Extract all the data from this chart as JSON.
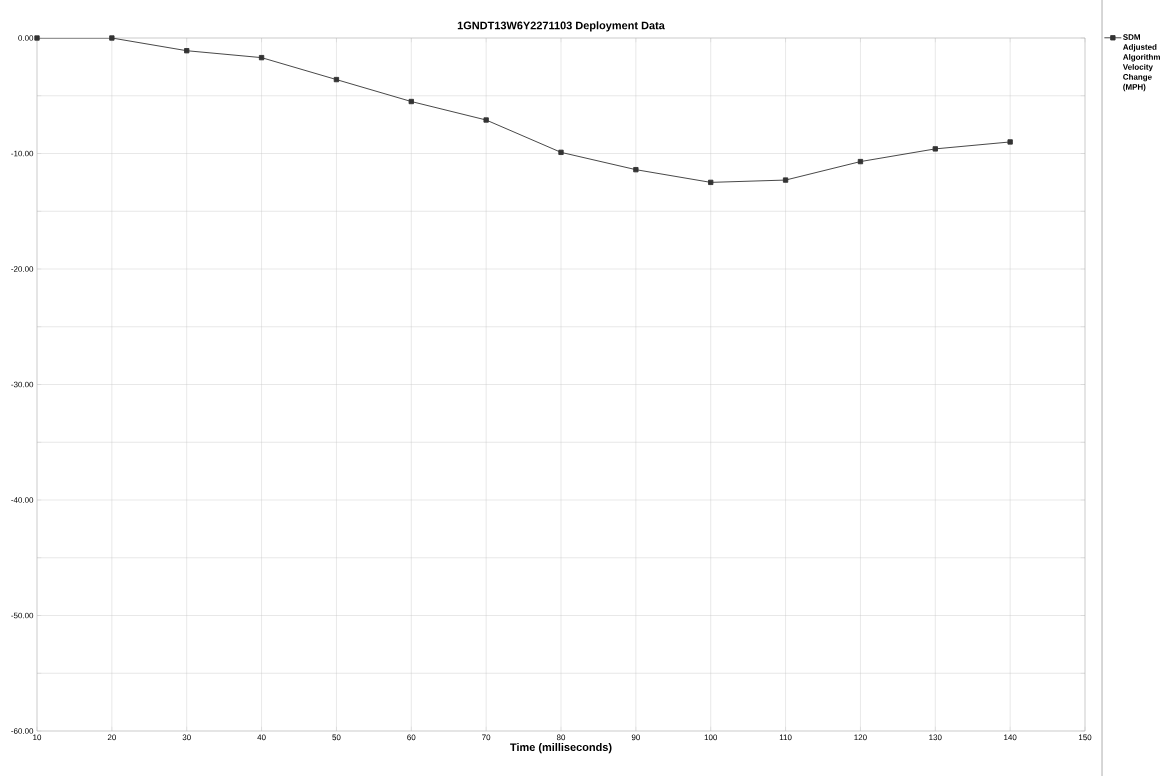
{
  "chart_data": {
    "type": "line",
    "title": "1GNDT13W6Y2271103  Deployment Data",
    "xlabel": "Time (milliseconds)",
    "x": [
      10,
      20,
      30,
      40,
      50,
      60,
      70,
      80,
      90,
      100,
      110,
      120,
      130,
      140
    ],
    "series": [
      {
        "name": "SDM Adjusted Algorithm Velocity Change (MPH)",
        "color": "#333333",
        "values": [
          0,
          0,
          -1.1,
          -1.7,
          -3.6,
          -5.5,
          -7.1,
          -9.9,
          -11.4,
          -12.5,
          -12.3,
          -10.7,
          -9.6,
          -9.0
        ]
      }
    ],
    "xlim": [
      10,
      150
    ],
    "xticks": [
      10,
      20,
      30,
      40,
      50,
      60,
      70,
      80,
      90,
      100,
      110,
      120,
      130,
      140,
      150
    ],
    "ylim": [
      -60,
      0
    ],
    "yticks": [
      {
        "value": 0,
        "label": "0.00"
      },
      {
        "value": -5,
        "label": null
      },
      {
        "value": -10,
        "label": "-10.00"
      },
      {
        "value": -15,
        "label": null
      },
      {
        "value": -20,
        "label": "-20.00"
      },
      {
        "value": -25,
        "label": null
      },
      {
        "value": -30,
        "label": "-30.00"
      },
      {
        "value": -35,
        "label": null
      },
      {
        "value": -40,
        "label": "-40.00"
      },
      {
        "value": -45,
        "label": null
      },
      {
        "value": -50,
        "label": "-50.00"
      },
      {
        "value": -55,
        "label": null
      },
      {
        "value": -60,
        "label": "-60.00"
      }
    ],
    "grid": true,
    "legend": "top right",
    "marker": "square",
    "line_style": "solid"
  }
}
